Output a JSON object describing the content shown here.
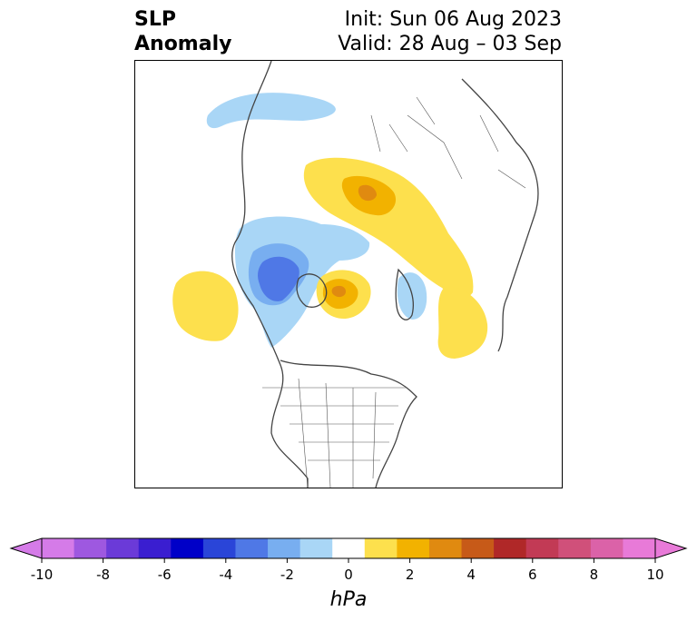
{
  "title": {
    "left_line1": "SLP",
    "left_line2": "Anomaly",
    "right_line1": "Init: Sun 06 Aug 2023",
    "right_line2": "Valid: 28 Aug – 03 Sep"
  },
  "colorbar": {
    "unit": "hPa",
    "ticks": [
      "-10",
      "-8",
      "-6",
      "-4",
      "-2",
      "0",
      "2",
      "4",
      "6",
      "8",
      "10"
    ],
    "bins": [
      "#d57be8",
      "#9e58e0",
      "#6b3ad8",
      "#3a1ed0",
      "#0000c8",
      "#2a45d8",
      "#4f78e6",
      "#78aef0",
      "#a9d6f6",
      "#ffffff",
      "#fde04d",
      "#f2b200",
      "#e08a10",
      "#c75a18",
      "#b02828",
      "#c23a55",
      "#d0507a",
      "#db62a8",
      "#e87ad8"
    ],
    "under_color": "#d57be8",
    "over_color": "#e87ad8"
  },
  "map": {
    "projection": "north-polar-stereographic",
    "region": "North America / Arctic",
    "features": [
      "coastlines",
      "country borders",
      "state/province borders"
    ]
  }
}
